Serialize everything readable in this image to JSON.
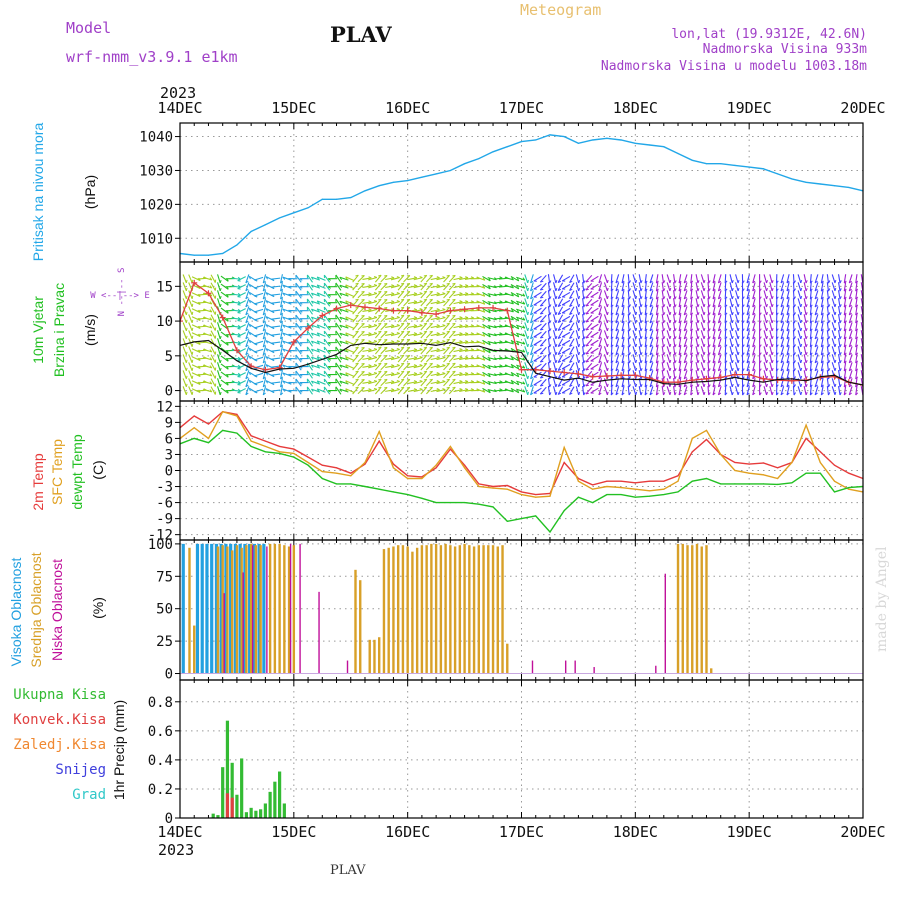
{
  "header": {
    "model_label": "Model",
    "model_name": "wrf-nmm_v3.9.1  e1km",
    "station": "PLAV",
    "meteogram_label": "Meteogram",
    "lonlat": "lon,lat (19.9312E, 42.6N)",
    "elevation": "Nadmorska Visina 933m",
    "model_elevation": "Nadmorska Visina u modelu 1003.18m",
    "credit": "made by Angel",
    "footer_station": "PLAV",
    "year": "2023"
  },
  "colors": {
    "pressure": "#22a7e8",
    "temp2m": "#e63b3b",
    "sfc_temp": "#e0a020",
    "dewpt": "#22c022",
    "high_cloud": "#22a0e0",
    "mid_cloud": "#d8a028",
    "low_cloud": "#c0109a",
    "precip_total": "#33bb33",
    "precip_convective": "#e04040",
    "label_purple": "#a040c8",
    "label_gold": "#e8c070"
  },
  "x_axis": {
    "ticks": [
      "14DEC",
      "15DEC",
      "16DEC",
      "17DEC",
      "18DEC",
      "19DEC",
      "20DEC"
    ],
    "range_hours": [
      0,
      144
    ]
  },
  "chart_data": [
    {
      "type": "line",
      "panel": "pressure",
      "ylabel": "Pritisak na nivou mora",
      "yunit": "(hPa)",
      "ylim": [
        1003,
        1044
      ],
      "yticks": [
        1010,
        1020,
        1030,
        1040
      ],
      "series": [
        {
          "name": "Pritisak na nivou mora",
          "x": [
            0,
            3,
            6,
            9,
            12,
            15,
            18,
            21,
            24,
            27,
            30,
            33,
            36,
            39,
            42,
            45,
            48,
            51,
            54,
            57,
            60,
            63,
            66,
            69,
            72,
            75,
            78,
            81,
            84,
            87,
            90,
            93,
            96,
            99,
            102,
            105,
            108,
            111,
            114,
            117,
            120,
            123,
            126,
            129,
            132,
            135,
            138,
            141,
            144
          ],
          "y": [
            1005.5,
            1005,
            1005,
            1005.5,
            1008,
            1012,
            1014,
            1016,
            1017.5,
            1019,
            1021.5,
            1021.5,
            1022,
            1024,
            1025.5,
            1026.5,
            1027,
            1028,
            1029,
            1030,
            1032,
            1033.5,
            1035.5,
            1037,
            1038.5,
            1039,
            1040.5,
            1040,
            1038,
            1039,
            1039.5,
            1039,
            1038,
            1037.5,
            1037,
            1035,
            1033,
            1032,
            1032,
            1031.5,
            1031,
            1030.5,
            1029,
            1027.5,
            1026.5,
            1026,
            1025.5,
            1025,
            1024
          ]
        }
      ]
    },
    {
      "type": "line",
      "panel": "wind",
      "ylabel": "10m Vjetar Brzina i Pravac",
      "yunit": "(m/s)",
      "direction_legend": "W <--|--> E",
      "direction_legend_ns": "N --|-- S",
      "ylim": [
        -1.5,
        18.5
      ],
      "yticks": [
        0,
        5,
        10,
        15
      ],
      "series": [
        {
          "name": "speed",
          "x": [
            0,
            3,
            6,
            9,
            12,
            15,
            18,
            21,
            24,
            27,
            30,
            33,
            36,
            39,
            42,
            45,
            48,
            51,
            54,
            57,
            60,
            63,
            66,
            69,
            72,
            75,
            78,
            81,
            84,
            87,
            90,
            93,
            96,
            99,
            102,
            105,
            108,
            111,
            114,
            117,
            120,
            123,
            126,
            129,
            132,
            135,
            138,
            141,
            144
          ],
          "y": [
            6.5,
            7,
            7.2,
            5.8,
            4.3,
            3.2,
            2.6,
            3.1,
            3.2,
            3.8,
            4.5,
            5.2,
            6.5,
            6.8,
            6.6,
            6.7,
            6.7,
            6.8,
            6.5,
            6.9,
            6.3,
            6.4,
            5.8,
            5.7,
            5.5,
            2.5,
            2,
            1.5,
            1.8,
            1.2,
            1.5,
            1.7,
            1.6,
            1.6,
            1,
            0.9,
            1.2,
            1.3,
            1.5,
            1.9,
            1.5,
            1.2,
            1.6,
            1.7,
            1.4,
            2,
            2.2,
            1.2,
            0.8
          ]
        },
        {
          "name": "gust",
          "x": [
            0,
            3,
            6,
            9,
            12,
            15,
            18,
            21,
            24,
            27,
            30,
            33,
            36,
            39,
            42,
            45,
            48,
            51,
            54,
            57,
            60,
            63,
            66,
            69,
            72,
            75,
            78,
            81,
            84,
            87,
            90,
            93,
            96,
            99,
            102,
            105,
            108,
            111,
            114,
            117,
            120,
            123,
            126,
            129,
            132,
            135,
            138,
            141,
            144
          ],
          "y": [
            10,
            15.5,
            14,
            10.5,
            5.8,
            3.5,
            3,
            3.3,
            7,
            9,
            10.8,
            11.8,
            12.3,
            12,
            11.8,
            11.5,
            11.5,
            11.2,
            11,
            11.5,
            11.7,
            11.9,
            11.9,
            11.5,
            3,
            3,
            2.8,
            2.6,
            2.4,
            2,
            2.1,
            2.2,
            2.2,
            1.8,
            1.2,
            1.2,
            1.5,
            1.7,
            1.9,
            2.3,
            2.3,
            1.7,
            1.5,
            1.4,
            1.5,
            1.9,
            2,
            1.2,
            0.8
          ]
        }
      ]
    },
    {
      "type": "line",
      "panel": "temperature",
      "ylabel": "2m Temp",
      "ylabel2": "SFC Temp",
      "ylabel3": "dewpt Temp",
      "yunit": "(C)",
      "ylim": [
        -13,
        13
      ],
      "yticks": [
        -12,
        -9,
        -6,
        -3,
        0,
        3,
        6,
        9,
        12
      ],
      "series": [
        {
          "name": "2m Temp",
          "x": [
            0,
            3,
            6,
            9,
            12,
            15,
            18,
            21,
            24,
            27,
            30,
            33,
            36,
            39,
            42,
            45,
            48,
            51,
            54,
            57,
            60,
            63,
            66,
            69,
            72,
            75,
            78,
            81,
            84,
            87,
            90,
            93,
            96,
            99,
            102,
            105,
            108,
            111,
            114,
            117,
            120,
            123,
            126,
            129,
            132,
            135,
            138,
            141,
            144
          ],
          "y": [
            8,
            10.2,
            8.7,
            11,
            10.5,
            6.5,
            5.5,
            4.5,
            4,
            2.5,
            1,
            0.5,
            -0.5,
            1.2,
            5.5,
            1.2,
            -1,
            -1.2,
            0.5,
            4,
            1,
            -2.5,
            -3,
            -2.8,
            -4,
            -4.5,
            -4.3,
            1.5,
            -1.5,
            -2.7,
            -2,
            -2,
            -2.3,
            -2,
            -2,
            -1,
            3.5,
            5.8,
            3,
            1.5,
            1.2,
            1.4,
            0.5,
            1.5,
            6,
            3.5,
            1,
            -0.5,
            -1.5
          ]
        },
        {
          "name": "SFC Temp",
          "x": [
            0,
            3,
            6,
            9,
            12,
            15,
            18,
            21,
            24,
            27,
            30,
            33,
            36,
            39,
            42,
            45,
            48,
            51,
            54,
            57,
            60,
            63,
            66,
            69,
            72,
            75,
            78,
            81,
            84,
            87,
            90,
            93,
            96,
            99,
            102,
            105,
            108,
            111,
            114,
            117,
            120,
            123,
            126,
            129,
            132,
            135,
            138,
            141,
            144
          ],
          "y": [
            6,
            8,
            6,
            11,
            10.2,
            5.5,
            4.5,
            3.5,
            3.2,
            1.5,
            -0.2,
            -0.5,
            -1,
            1.5,
            7.3,
            0.5,
            -1.5,
            -1.5,
            1,
            4.5,
            0.5,
            -3,
            -3.3,
            -3.5,
            -4.5,
            -5,
            -4.8,
            4.3,
            -2,
            -3.5,
            -3,
            -3.2,
            -3.5,
            -3.8,
            -3.5,
            -2,
            6,
            7.5,
            3,
            0,
            -0.5,
            -0.8,
            -1.5,
            1.5,
            8.5,
            1.5,
            -2,
            -3.5,
            -4
          ]
        },
        {
          "name": "dewpt Temp",
          "x": [
            0,
            3,
            6,
            9,
            12,
            15,
            18,
            21,
            24,
            27,
            30,
            33,
            36,
            39,
            42,
            45,
            48,
            51,
            54,
            57,
            60,
            63,
            66,
            69,
            72,
            75,
            78,
            81,
            84,
            87,
            90,
            93,
            96,
            99,
            102,
            105,
            108,
            111,
            114,
            117,
            120,
            123,
            126,
            129,
            132,
            135,
            138,
            141,
            144
          ],
          "y": [
            5,
            6,
            5.2,
            7.5,
            7,
            4.5,
            3.5,
            3.2,
            2.5,
            1,
            -1.5,
            -2.5,
            -2.5,
            -3,
            -3.5,
            -4,
            -4.5,
            -5.2,
            -6,
            -6,
            -6,
            -6.3,
            -6.8,
            -9.5,
            -9,
            -8.5,
            -11.5,
            -7.5,
            -5,
            -6,
            -4.5,
            -4.5,
            -5,
            -4.8,
            -4.5,
            -4,
            -2,
            -1.5,
            -2.5,
            -2.5,
            -2.5,
            -2.5,
            -2.6,
            -2.3,
            -0.5,
            -0.5,
            -4,
            -3.2,
            -3
          ]
        }
      ]
    },
    {
      "type": "bar",
      "panel": "clouds",
      "ylabel": "Visoka Oblacnost",
      "ylabel2": "Srednja Oblacnost",
      "ylabel3": "Niska Oblacnost",
      "yunit": "(%)",
      "ylim": [
        -5,
        103
      ],
      "yticks": [
        0,
        25,
        50,
        75,
        100
      ],
      "series": [
        {
          "name": "Visoka Oblacnost",
          "x": [
            1,
            4,
            5,
            6,
            7,
            8,
            9,
            10,
            11,
            12,
            13,
            14,
            15,
            16,
            17,
            18
          ],
          "y": [
            100,
            100,
            100,
            100,
            100,
            100,
            100,
            100,
            100,
            100,
            100,
            100,
            100,
            100,
            100,
            100
          ]
        },
        {
          "name": "Srednja Oblacnost",
          "x": [
            2,
            3,
            8,
            9,
            10,
            11,
            12,
            13,
            14,
            15,
            16,
            17,
            19,
            20,
            21,
            22,
            23,
            24,
            37,
            38,
            40,
            41,
            42,
            43,
            44,
            45,
            46,
            47,
            48,
            49,
            50,
            51,
            52,
            53,
            54,
            55,
            56,
            57,
            58,
            59,
            60,
            61,
            62,
            63,
            64,
            65,
            66,
            67,
            68,
            69,
            105,
            106,
            107,
            108,
            109,
            110,
            111,
            112
          ],
          "y": [
            97,
            37,
            98,
            99,
            98,
            95,
            99,
            97,
            99,
            100,
            99,
            99,
            100,
            100,
            100,
            99,
            98,
            99,
            80,
            72,
            26,
            26,
            28,
            96,
            97,
            98,
            99,
            99,
            98,
            94,
            97,
            99,
            99,
            100,
            100,
            99,
            100,
            99,
            98,
            99,
            100,
            99,
            98,
            99,
            99,
            99,
            99,
            98,
            99,
            23,
            100,
            100,
            99,
            99,
            100,
            98,
            99,
            4
          ]
        },
        {
          "name": "Niska Oblacnost",
          "x": [
            9,
            13,
            15,
            18,
            23,
            25,
            29,
            35,
            74,
            81,
            83,
            87,
            100,
            102
          ],
          "y": [
            62,
            78,
            99,
            98,
            100,
            100,
            63,
            10,
            10,
            10,
            10,
            5,
            6,
            77
          ]
        }
      ]
    },
    {
      "type": "bar",
      "panel": "precip",
      "ylabel": "1hr Precip (mm)",
      "legend": [
        "Ukupna Kisa",
        "Konvek.Kisa",
        "Zaledj.Kisa",
        "Snijeg",
        "Grad"
      ],
      "ylim": [
        0,
        0.95
      ],
      "yticks": [
        0,
        0.2,
        0.4,
        0.6,
        0.8
      ],
      "series": [
        {
          "name": "Ukupna Kisa",
          "x": [
            7,
            8,
            9,
            10,
            11,
            12,
            13,
            14,
            15,
            16,
            17,
            18,
            19,
            20,
            21,
            22,
            23
          ],
          "y": [
            0.03,
            0.02,
            0.35,
            0.67,
            0.38,
            0.16,
            0.41,
            0.04,
            0.07,
            0.05,
            0.06,
            0.1,
            0.18,
            0.25,
            0.32,
            0.1,
            0
          ]
        },
        {
          "name": "Konvek.Kisa",
          "x": [
            10,
            11
          ],
          "y": [
            0.17,
            0.14
          ]
        }
      ]
    }
  ],
  "panels": {
    "pressure": {
      "label": "Pritisak na nivou mora",
      "unit": "(hPa)"
    },
    "wind": {
      "label1": "10m Vjetar",
      "label2": "Brzina i Pravac",
      "unit": "(m/s)"
    },
    "temperature": {
      "label1": "2m Temp",
      "label2": "SFC Temp",
      "label3": "dewpt Temp",
      "unit": "(C)"
    },
    "clouds": {
      "label1": "Visoka Oblacnost",
      "label2": "Srednja Oblacnost",
      "label3": "Niska Oblacnost",
      "unit": "(%)"
    },
    "precip": {
      "unit_label": "1hr Precip (mm)",
      "legend": [
        "Ukupna Kisa",
        "Konvek.Kisa",
        "Zaledj.Kisa",
        "Snijeg",
        "Grad"
      ]
    }
  },
  "legend_colors": {
    "precip": [
      "#33bb33",
      "#e04040",
      "#f08830",
      "#4040dd",
      "#30c8c8"
    ]
  }
}
